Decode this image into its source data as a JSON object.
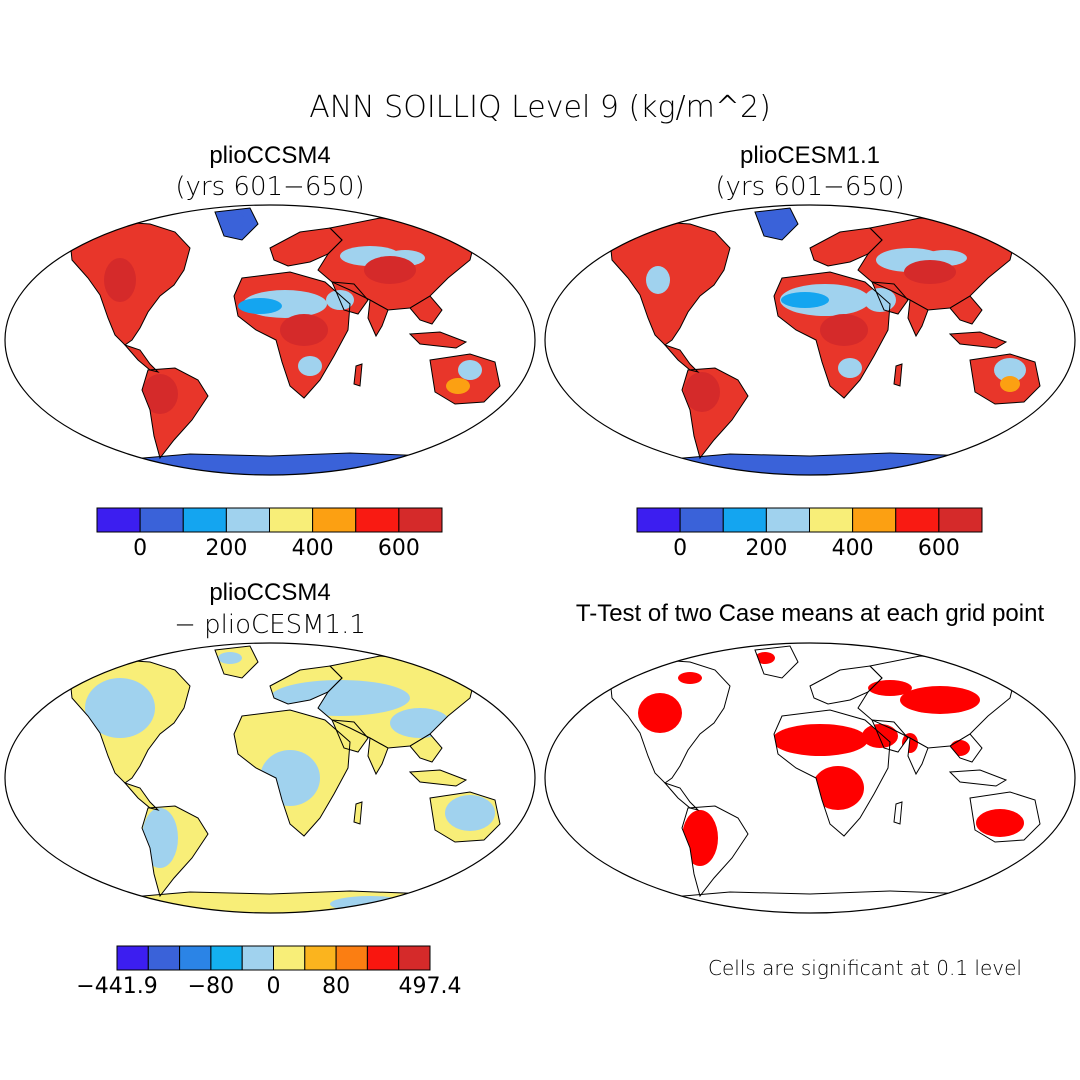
{
  "figure": {
    "title": "ANN SOILLIQ Level 9 (kg/m^2)"
  },
  "colors": {
    "ocean": "#ffffff",
    "land_default": "#e8362a",
    "ice": "#3a62d9",
    "coast": "#000000"
  },
  "panels": [
    {
      "id": "plioCCSM4",
      "title": "plioCCSM4",
      "subtitle": "(yrs 601−650)",
      "colorbar": {
        "colors": [
          "#3c1ef0",
          "#3a62d9",
          "#14a5f0",
          "#a0d2ee",
          "#f8ee78",
          "#fca012",
          "#f91a12",
          "#d52a2a"
        ],
        "tick_labels": [
          "0",
          "200",
          "400",
          "600"
        ],
        "tick_boundary_index": [
          1,
          3,
          5,
          7
        ]
      }
    },
    {
      "id": "plioCESM1.1",
      "title": "plioCESM1.1",
      "subtitle": "(yrs 601−650)",
      "colorbar": {
        "colors": [
          "#3c1ef0",
          "#3a62d9",
          "#14a5f0",
          "#a0d2ee",
          "#f8ee78",
          "#fca012",
          "#f91a12",
          "#d52a2a"
        ],
        "tick_labels": [
          "0",
          "200",
          "400",
          "600"
        ],
        "tick_boundary_index": [
          1,
          3,
          5,
          7
        ]
      }
    },
    {
      "id": "difference",
      "title": "plioCCSM4",
      "subtitle": "− plioCESM1.1",
      "colorbar": {
        "colors": [
          "#3c1ef0",
          "#3a62d9",
          "#2b84e6",
          "#14b0f0",
          "#a0d2ee",
          "#f8ee78",
          "#fbb41e",
          "#fb7e12",
          "#f9160f",
          "#d52a2a"
        ],
        "tick_labels": [
          "−441.9",
          "−80",
          "0",
          "80",
          "497.4"
        ],
        "tick_boundary_index": [
          0,
          3,
          5,
          7,
          10
        ]
      }
    },
    {
      "id": "ttest",
      "title": "T-Test of two Case means at each grid point",
      "subtitle": "",
      "note": "Cells are significant at 0.1 level",
      "significant_color": "#ff0000"
    }
  ]
}
